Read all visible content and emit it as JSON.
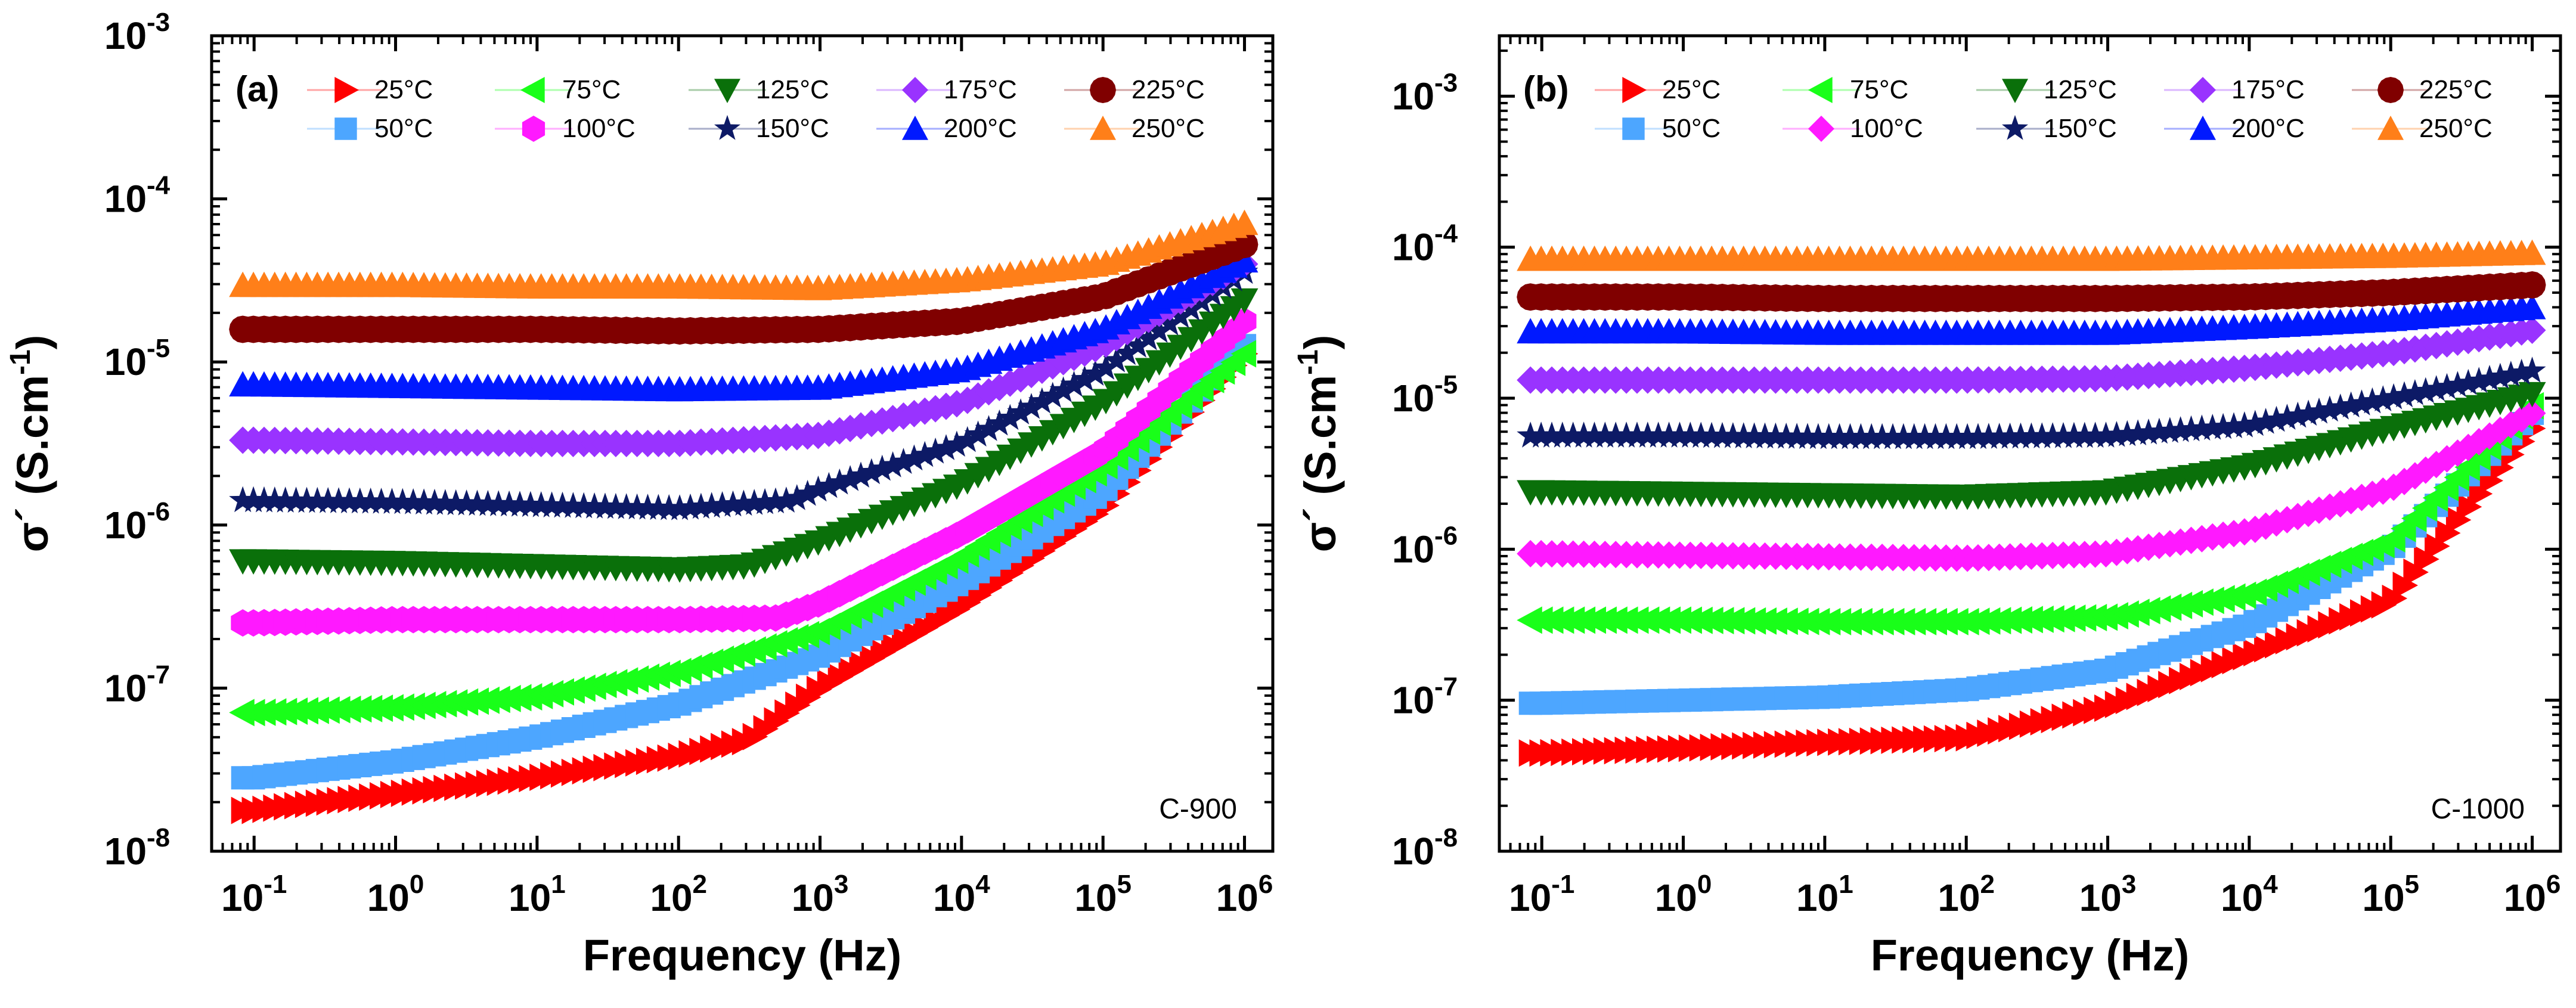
{
  "chart_data": [
    {
      "type": "scatter",
      "panel_label": "(a)",
      "sample_label": "C-900",
      "title": "",
      "xlabel": "Frequency (Hz)",
      "ylabel_main": "σ´ (S.cm",
      "ylabel_sup": "-1",
      "ylabel_close": ")",
      "xscale": "log",
      "yscale": "log",
      "xlim_exp": [
        -1.3,
        6.2
      ],
      "ylim_exp": [
        -8,
        -3
      ],
      "x_ticks": [
        {
          "base": "10",
          "exp": "-1"
        },
        {
          "base": "10",
          "exp": "0"
        },
        {
          "base": "10",
          "exp": "1"
        },
        {
          "base": "10",
          "exp": "2"
        },
        {
          "base": "10",
          "exp": "3"
        },
        {
          "base": "10",
          "exp": "4"
        },
        {
          "base": "10",
          "exp": "5"
        },
        {
          "base": "10",
          "exp": "6"
        }
      ],
      "y_ticks": [
        {
          "base": "10",
          "exp": "-8"
        },
        {
          "base": "10",
          "exp": "-7"
        },
        {
          "base": "10",
          "exp": "-6"
        },
        {
          "base": "10",
          "exp": "-5"
        },
        {
          "base": "10",
          "exp": "-4"
        },
        {
          "base": "10",
          "exp": "-3"
        }
      ],
      "legend_placement": "top",
      "x_data_note": "x values are log10(frequency in Hz); y values are log10(conductivity in S/cm)",
      "series": [
        {
          "name": "25°C",
          "color": "#ff0000",
          "marker": "triangle-right",
          "points": [
            [
              -1,
              -7.75
            ],
            [
              0,
              -7.65
            ],
            [
              1,
              -7.55
            ],
            [
              2,
              -7.42
            ],
            [
              2.5,
              -7.32
            ],
            [
              3,
              -7.0
            ],
            [
              4,
              -6.5
            ],
            [
              5,
              -5.9
            ],
            [
              6,
              -4.95
            ]
          ]
        },
        {
          "name": "50°C",
          "color": "#4da6ff",
          "marker": "square",
          "points": [
            [
              -1,
              -7.55
            ],
            [
              0,
              -7.45
            ],
            [
              1,
              -7.3
            ],
            [
              2,
              -7.1
            ],
            [
              3,
              -6.8
            ],
            [
              4,
              -6.35
            ],
            [
              5,
              -5.8
            ],
            [
              6,
              -4.9
            ]
          ]
        },
        {
          "name": "75°C",
          "color": "#19ff19",
          "marker": "triangle-left",
          "points": [
            [
              -1,
              -7.15
            ],
            [
              0,
              -7.12
            ],
            [
              1,
              -7.05
            ],
            [
              2,
              -6.9
            ],
            [
              3,
              -6.65
            ],
            [
              4,
              -6.2
            ],
            [
              5,
              -5.65
            ],
            [
              6,
              -4.95
            ]
          ]
        },
        {
          "name": "100°C",
          "color": "#ff19ff",
          "marker": "hexagon",
          "points": [
            [
              -1,
              -6.6
            ],
            [
              0,
              -6.58
            ],
            [
              1,
              -6.58
            ],
            [
              2,
              -6.58
            ],
            [
              2.7,
              -6.57
            ],
            [
              3,
              -6.48
            ],
            [
              4,
              -6.05
            ],
            [
              5,
              -5.55
            ],
            [
              6,
              -4.75
            ]
          ]
        },
        {
          "name": "125°C",
          "color": "#0a700a",
          "marker": "triangle-down",
          "points": [
            [
              -1,
              -6.22
            ],
            [
              0,
              -6.23
            ],
            [
              1,
              -6.25
            ],
            [
              2,
              -6.27
            ],
            [
              2.5,
              -6.25
            ],
            [
              3,
              -6.1
            ],
            [
              4,
              -5.75
            ],
            [
              5,
              -5.25
            ],
            [
              6,
              -4.62
            ]
          ]
        },
        {
          "name": "150°C",
          "color": "#0d1a66",
          "marker": "star",
          "points": [
            [
              -1,
              -5.85
            ],
            [
              0,
              -5.86
            ],
            [
              1,
              -5.88
            ],
            [
              2,
              -5.9
            ],
            [
              2.8,
              -5.85
            ],
            [
              3,
              -5.78
            ],
            [
              4,
              -5.5
            ],
            [
              5,
              -5.05
            ],
            [
              6,
              -4.45
            ]
          ]
        },
        {
          "name": "175°C",
          "color": "#9933ff",
          "marker": "diamond",
          "points": [
            [
              -1,
              -5.48
            ],
            [
              0,
              -5.49
            ],
            [
              1,
              -5.5
            ],
            [
              2,
              -5.5
            ],
            [
              3,
              -5.45
            ],
            [
              4,
              -5.25
            ],
            [
              5,
              -4.9
            ],
            [
              6,
              -4.4
            ]
          ]
        },
        {
          "name": "200°C",
          "color": "#0019ff",
          "marker": "triangle-up",
          "points": [
            [
              -1,
              -5.14
            ],
            [
              0,
              -5.15
            ],
            [
              1,
              -5.16
            ],
            [
              2,
              -5.17
            ],
            [
              3,
              -5.16
            ],
            [
              4,
              -5.05
            ],
            [
              5,
              -4.8
            ],
            [
              6,
              -4.38
            ]
          ]
        },
        {
          "name": "225°C",
          "color": "#800000",
          "marker": "circle",
          "points": [
            [
              -1,
              -4.8
            ],
            [
              0,
              -4.8
            ],
            [
              1,
              -4.8
            ],
            [
              2,
              -4.81
            ],
            [
              3,
              -4.8
            ],
            [
              4,
              -4.75
            ],
            [
              5,
              -4.6
            ],
            [
              6,
              -4.28
            ]
          ]
        },
        {
          "name": "250°C",
          "color": "#ff7f19",
          "marker": "triangle-up",
          "points": [
            [
              -1,
              -4.53
            ],
            [
              0,
              -4.53
            ],
            [
              1,
              -4.54
            ],
            [
              2,
              -4.54
            ],
            [
              3,
              -4.55
            ],
            [
              4,
              -4.5
            ],
            [
              5,
              -4.4
            ],
            [
              6,
              -4.15
            ]
          ]
        }
      ]
    },
    {
      "type": "scatter",
      "panel_label": "(b)",
      "sample_label": "C-1000",
      "title": "",
      "xlabel": "Frequency (Hz)",
      "ylabel_main": "σ´ (S.cm",
      "ylabel_sup": "-1",
      "ylabel_close": ")",
      "xscale": "log",
      "yscale": "log",
      "xlim_exp": [
        -1.3,
        6.2
      ],
      "ylim_exp": [
        -8,
        -2.6
      ],
      "x_ticks": [
        {
          "base": "10",
          "exp": "-1"
        },
        {
          "base": "10",
          "exp": "0"
        },
        {
          "base": "10",
          "exp": "1"
        },
        {
          "base": "10",
          "exp": "2"
        },
        {
          "base": "10",
          "exp": "3"
        },
        {
          "base": "10",
          "exp": "4"
        },
        {
          "base": "10",
          "exp": "5"
        },
        {
          "base": "10",
          "exp": "6"
        }
      ],
      "y_ticks": [
        {
          "base": "10",
          "exp": "-8"
        },
        {
          "base": "10",
          "exp": "-7"
        },
        {
          "base": "10",
          "exp": "-6"
        },
        {
          "base": "10",
          "exp": "-5"
        },
        {
          "base": "10",
          "exp": "-4"
        },
        {
          "base": "10",
          "exp": "-3"
        }
      ],
      "legend_placement": "top",
      "x_data_note": "x values are log10(frequency in Hz); y values are log10(conductivity in S/cm)",
      "series": [
        {
          "name": "25°C",
          "color": "#ff0000",
          "marker": "triangle-right",
          "points": [
            [
              -1,
              -7.35
            ],
            [
              0,
              -7.32
            ],
            [
              1,
              -7.28
            ],
            [
              2,
              -7.25
            ],
            [
              3,
              -7.05
            ],
            [
              4,
              -6.7
            ],
            [
              5,
              -6.35
            ],
            [
              6,
              -5.2
            ]
          ]
        },
        {
          "name": "50°C",
          "color": "#4da6ff",
          "marker": "square",
          "points": [
            [
              -1,
              -7.02
            ],
            [
              0,
              -7.0
            ],
            [
              1,
              -6.98
            ],
            [
              2,
              -6.93
            ],
            [
              3,
              -6.8
            ],
            [
              4,
              -6.5
            ],
            [
              5,
              -6.0
            ],
            [
              6,
              -5.1
            ]
          ]
        },
        {
          "name": "75°C",
          "color": "#19ff19",
          "marker": "triangle-left",
          "points": [
            [
              -1,
              -6.47
            ],
            [
              0,
              -6.47
            ],
            [
              1,
              -6.48
            ],
            [
              2,
              -6.48
            ],
            [
              3,
              -6.45
            ],
            [
              4,
              -6.3
            ],
            [
              5,
              -5.95
            ],
            [
              6,
              -5.05
            ]
          ]
        },
        {
          "name": "100°C",
          "color": "#ff19ff",
          "marker": "diamond",
          "points": [
            [
              -1,
              -6.03
            ],
            [
              0,
              -6.04
            ],
            [
              1,
              -6.05
            ],
            [
              2,
              -6.06
            ],
            [
              3,
              -6.03
            ],
            [
              4,
              -5.88
            ],
            [
              5,
              -5.6
            ],
            [
              6,
              -5.1
            ]
          ]
        },
        {
          "name": "125°C",
          "color": "#0a700a",
          "marker": "triangle-down",
          "points": [
            [
              -1,
              -5.62
            ],
            [
              0,
              -5.63
            ],
            [
              1,
              -5.64
            ],
            [
              2,
              -5.65
            ],
            [
              3,
              -5.62
            ],
            [
              4,
              -5.45
            ],
            [
              5,
              -5.2
            ],
            [
              6,
              -4.97
            ]
          ]
        },
        {
          "name": "150°C",
          "color": "#0d1a66",
          "marker": "star",
          "points": [
            [
              -1,
              -5.25
            ],
            [
              0,
              -5.25
            ],
            [
              1,
              -5.26
            ],
            [
              2,
              -5.26
            ],
            [
              3,
              -5.25
            ],
            [
              4,
              -5.18
            ],
            [
              5,
              -5.0
            ],
            [
              6,
              -4.82
            ]
          ]
        },
        {
          "name": "175°C",
          "color": "#9933ff",
          "marker": "diamond",
          "points": [
            [
              -1,
              -4.88
            ],
            [
              0,
              -4.88
            ],
            [
              1,
              -4.88
            ],
            [
              2,
              -4.88
            ],
            [
              3,
              -4.87
            ],
            [
              4,
              -4.8
            ],
            [
              5,
              -4.7
            ],
            [
              6,
              -4.55
            ]
          ]
        },
        {
          "name": "200°C",
          "color": "#0019ff",
          "marker": "triangle-up",
          "points": [
            [
              -1,
              -4.56
            ],
            [
              0,
              -4.56
            ],
            [
              1,
              -4.57
            ],
            [
              2,
              -4.57
            ],
            [
              3,
              -4.57
            ],
            [
              4,
              -4.53
            ],
            [
              5,
              -4.48
            ],
            [
              6,
              -4.4
            ]
          ]
        },
        {
          "name": "225°C",
          "color": "#800000",
          "marker": "circle",
          "points": [
            [
              -1,
              -4.33
            ],
            [
              0,
              -4.33
            ],
            [
              1,
              -4.34
            ],
            [
              2,
              -4.34
            ],
            [
              3,
              -4.34
            ],
            [
              4,
              -4.33
            ],
            [
              5,
              -4.3
            ],
            [
              6,
              -4.25
            ]
          ]
        },
        {
          "name": "250°C",
          "color": "#ff7f19",
          "marker": "triangle-up",
          "points": [
            [
              -1,
              -4.08
            ],
            [
              0,
              -4.08
            ],
            [
              1,
              -4.08
            ],
            [
              2,
              -4.08
            ],
            [
              3,
              -4.08
            ],
            [
              4,
              -4.07
            ],
            [
              5,
              -4.06
            ],
            [
              6,
              -4.04
            ]
          ]
        }
      ]
    }
  ]
}
